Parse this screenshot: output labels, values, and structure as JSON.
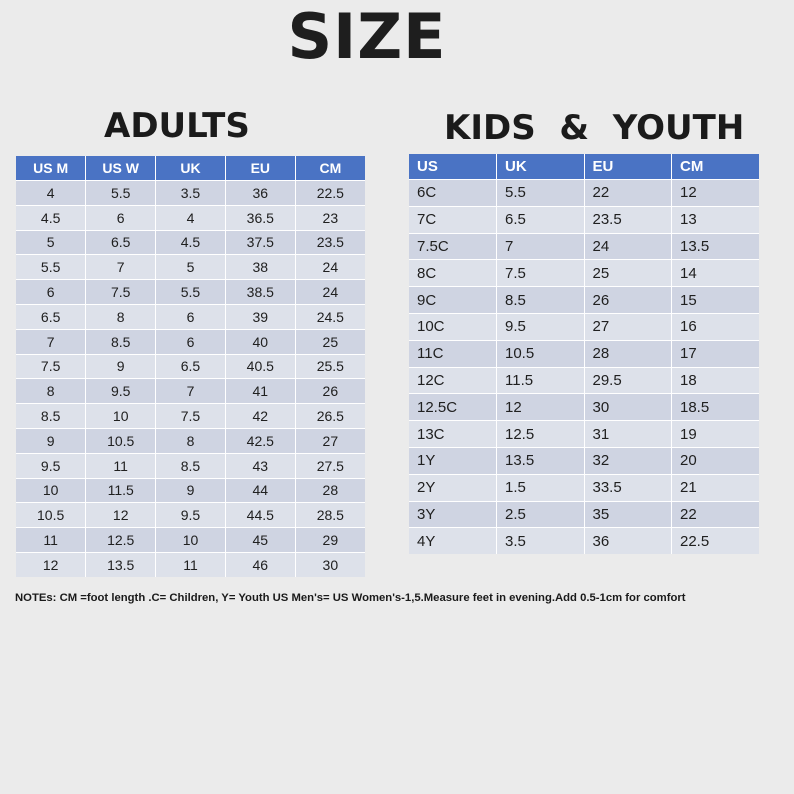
{
  "title": "SIZE",
  "adults": {
    "heading": "ADULTS",
    "columns": [
      "US M",
      "US W",
      "UK",
      "EU",
      "CM"
    ],
    "rows": [
      [
        "4",
        "5.5",
        "3.5",
        "36",
        "22.5"
      ],
      [
        "4.5",
        "6",
        "4",
        "36.5",
        "23"
      ],
      [
        "5",
        "6.5",
        "4.5",
        "37.5",
        "23.5"
      ],
      [
        "5.5",
        "7",
        "5",
        "38",
        "24"
      ],
      [
        "6",
        "7.5",
        "5.5",
        "38.5",
        "24"
      ],
      [
        "6.5",
        "8",
        "6",
        "39",
        "24.5"
      ],
      [
        "7",
        "8.5",
        "6",
        "40",
        "25"
      ],
      [
        "7.5",
        "9",
        "6.5",
        "40.5",
        "25.5"
      ],
      [
        "8",
        "9.5",
        "7",
        "41",
        "26"
      ],
      [
        "8.5",
        "10",
        "7.5",
        "42",
        "26.5"
      ],
      [
        "9",
        "10.5",
        "8",
        "42.5",
        "27"
      ],
      [
        "9.5",
        "11",
        "8.5",
        "43",
        "27.5"
      ],
      [
        "10",
        "11.5",
        "9",
        "44",
        "28"
      ],
      [
        "10.5",
        "12",
        "9.5",
        "44.5",
        "28.5"
      ],
      [
        "11",
        "12.5",
        "10",
        "45",
        "29"
      ],
      [
        "12",
        "13.5",
        "11",
        "46",
        "30"
      ]
    ]
  },
  "kids": {
    "heading": "KIDS  &  YOUTH",
    "columns": [
      "US",
      "UK",
      "EU",
      "CM"
    ],
    "rows": [
      [
        "6C",
        "5.5",
        "22",
        "12"
      ],
      [
        "7C",
        "6.5",
        "23.5",
        "13"
      ],
      [
        "7.5C",
        "7",
        "24",
        "13.5"
      ],
      [
        "8C",
        "7.5",
        "25",
        "14"
      ],
      [
        "9C",
        "8.5",
        "26",
        "15"
      ],
      [
        "10C",
        "9.5",
        "27",
        "16"
      ],
      [
        "11C",
        "10.5",
        "28",
        "17"
      ],
      [
        "12C",
        "11.5",
        "29.5",
        "18"
      ],
      [
        "12.5C",
        "12",
        "30",
        "18.5"
      ],
      [
        "13C",
        "12.5",
        "31",
        "19"
      ],
      [
        "1Y",
        "13.5",
        "32",
        "20"
      ],
      [
        "2Y",
        "1.5",
        "33.5",
        "21"
      ],
      [
        "3Y",
        "2.5",
        "35",
        "22"
      ],
      [
        "4Y",
        "3.5",
        "36",
        "22.5"
      ]
    ]
  },
  "notes": "NOTEs: CM =foot length .C= Children, Y= Youth  US Men's= US Women's-1,5.Measure feet in evening.Add 0.5-1cm for comfort"
}
